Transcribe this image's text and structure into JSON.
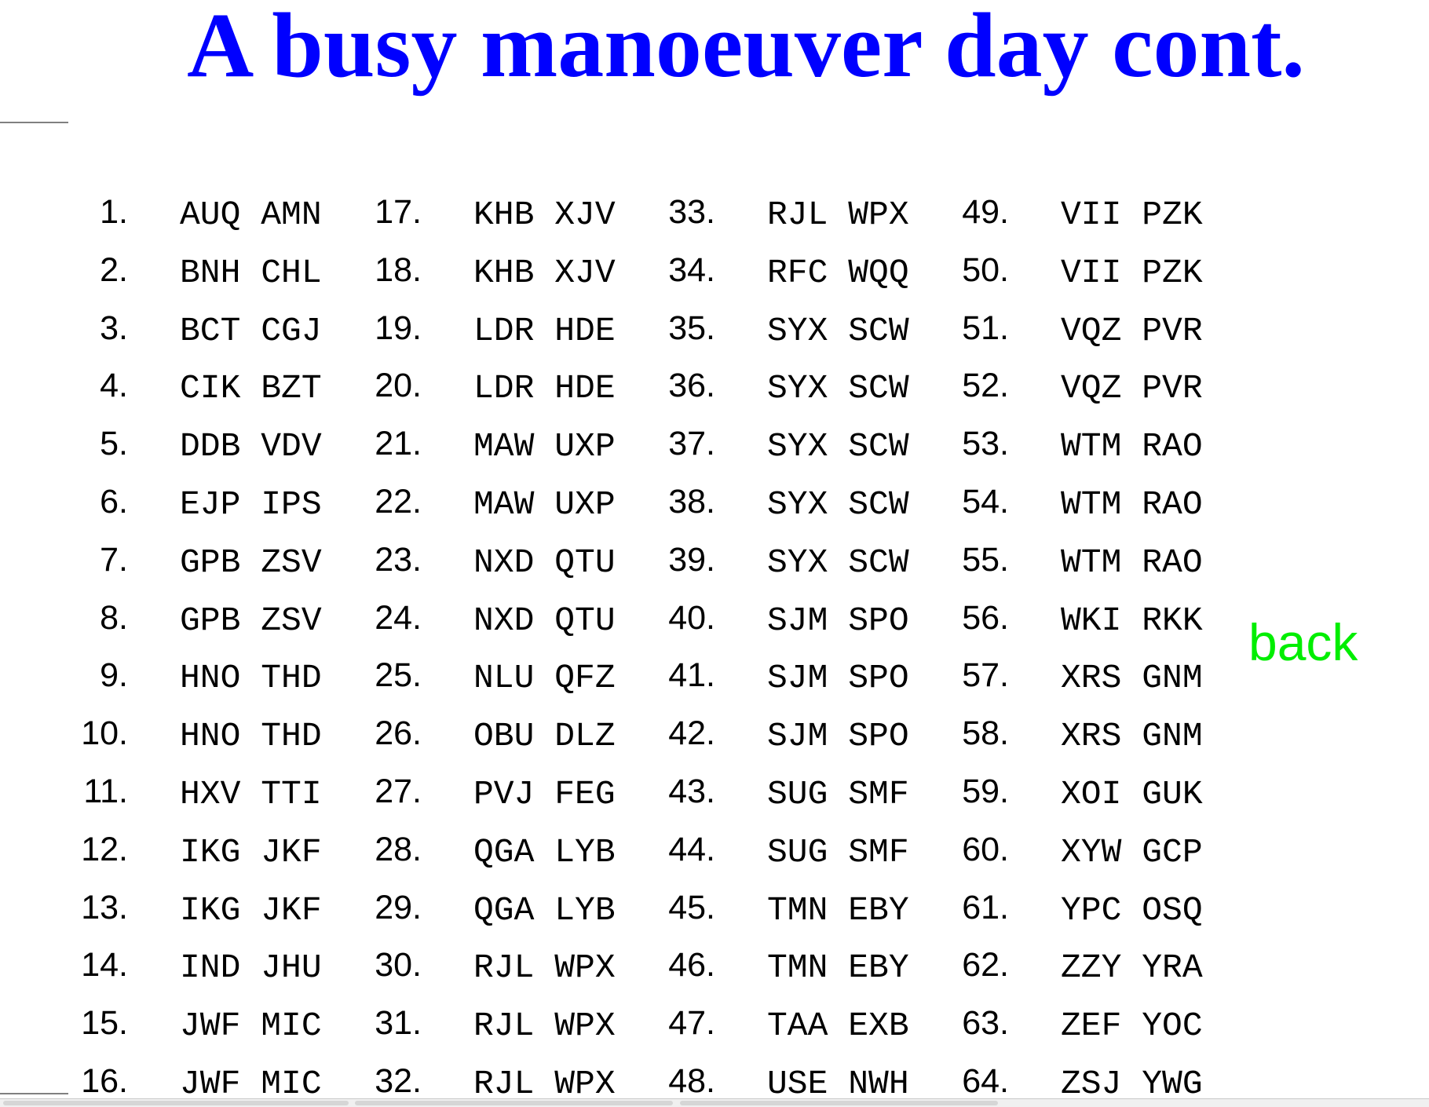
{
  "title": "A busy manoeuver day cont.",
  "back_link": {
    "label": "back"
  },
  "columns": [
    [
      {
        "num": "1.",
        "code": "AUQ AMN"
      },
      {
        "num": "2.",
        "code": "BNH CHL"
      },
      {
        "num": "3.",
        "code": "BCT CGJ"
      },
      {
        "num": "4.",
        "code": "CIK BZT"
      },
      {
        "num": "5.",
        "code": "DDB VDV"
      },
      {
        "num": "6.",
        "code": "EJP IPS"
      },
      {
        "num": "7.",
        "code": "GPB ZSV"
      },
      {
        "num": "8.",
        "code": "GPB ZSV"
      },
      {
        "num": "9.",
        "code": "HNO THD"
      },
      {
        "num": "10.",
        "code": "HNO THD"
      },
      {
        "num": "11.",
        "code": "HXV TTI"
      },
      {
        "num": "12.",
        "code": "IKG JKF"
      },
      {
        "num": "13.",
        "code": "IKG JKF"
      },
      {
        "num": "14.",
        "code": "IND JHU"
      },
      {
        "num": "15.",
        "code": "JWF MIC"
      },
      {
        "num": "16.",
        "code": "JWF MIC"
      }
    ],
    [
      {
        "num": "17.",
        "code": "KHB XJV"
      },
      {
        "num": "18.",
        "code": "KHB XJV"
      },
      {
        "num": "19.",
        "code": "LDR HDE"
      },
      {
        "num": "20.",
        "code": "LDR HDE"
      },
      {
        "num": "21.",
        "code": "MAW UXP"
      },
      {
        "num": "22.",
        "code": "MAW UXP"
      },
      {
        "num": "23.",
        "code": "NXD QTU"
      },
      {
        "num": "24.",
        "code": "NXD QTU"
      },
      {
        "num": "25.",
        "code": "NLU QFZ"
      },
      {
        "num": "26.",
        "code": "OBU DLZ"
      },
      {
        "num": "27.",
        "code": "PVJ FEG"
      },
      {
        "num": "28.",
        "code": "QGA LYB"
      },
      {
        "num": "29.",
        "code": "QGA LYB"
      },
      {
        "num": "30.",
        "code": "RJL WPX"
      },
      {
        "num": "31.",
        "code": "RJL WPX"
      },
      {
        "num": "32.",
        "code": "RJL WPX"
      }
    ],
    [
      {
        "num": "33.",
        "code": "RJL WPX"
      },
      {
        "num": "34.",
        "code": "RFC WQQ"
      },
      {
        "num": "35.",
        "code": "SYX SCW"
      },
      {
        "num": "36.",
        "code": "SYX SCW"
      },
      {
        "num": "37.",
        "code": "SYX SCW"
      },
      {
        "num": "38.",
        "code": "SYX SCW"
      },
      {
        "num": "39.",
        "code": "SYX SCW"
      },
      {
        "num": "40.",
        "code": "SJM SPO"
      },
      {
        "num": "41.",
        "code": "SJM SPO"
      },
      {
        "num": "42.",
        "code": "SJM SPO"
      },
      {
        "num": "43.",
        "code": "SUG SMF"
      },
      {
        "num": "44.",
        "code": "SUG SMF"
      },
      {
        "num": "45.",
        "code": "TMN EBY"
      },
      {
        "num": "46.",
        "code": "TMN EBY"
      },
      {
        "num": "47.",
        "code": "TAA EXB"
      },
      {
        "num": "48.",
        "code": "USE NWH"
      }
    ],
    [
      {
        "num": "49.",
        "code": "VII PZK"
      },
      {
        "num": "50.",
        "code": "VII PZK"
      },
      {
        "num": "51.",
        "code": "VQZ PVR"
      },
      {
        "num": "52.",
        "code": "VQZ PVR"
      },
      {
        "num": "53.",
        "code": "WTM RAO"
      },
      {
        "num": "54.",
        "code": "WTM RAO"
      },
      {
        "num": "55.",
        "code": "WTM RAO"
      },
      {
        "num": "56.",
        "code": "WKI RKK"
      },
      {
        "num": "57.",
        "code": "XRS GNM"
      },
      {
        "num": "58.",
        "code": "XRS GNM"
      },
      {
        "num": "59.",
        "code": "XOI GUK"
      },
      {
        "num": "60.",
        "code": "XYW GCP"
      },
      {
        "num": "61.",
        "code": "YPC OSQ"
      },
      {
        "num": "62.",
        "code": "ZZY YRA"
      },
      {
        "num": "63.",
        "code": "ZEF YOC"
      },
      {
        "num": "64.",
        "code": "ZSJ YWG"
      }
    ]
  ],
  "colors": {
    "title": "#0000ff",
    "back_link": "#00ee00",
    "text": "#000000",
    "rule": "#808080"
  }
}
